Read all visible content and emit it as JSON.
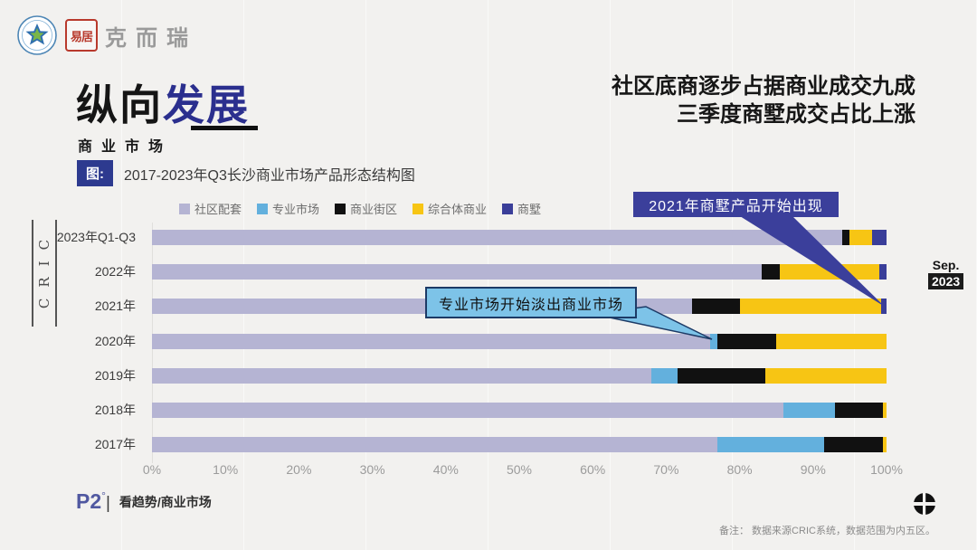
{
  "header": {
    "brand": "克而瑞",
    "seal_text": "易居",
    "title_black": "纵向",
    "title_blue": "发展",
    "subtitle": "商业市场",
    "headline_line1": "社区底商逐步占据商业成交九成",
    "headline_line2": "三季度商墅成交占比上涨"
  },
  "figure": {
    "tag_label": "图:",
    "caption": "2017-2023年Q3长沙商业市场产品形态结构图"
  },
  "chart_data": {
    "type": "bar",
    "orientation": "horizontal",
    "stacked": true,
    "unit": "%",
    "title": "2017-2023年Q3长沙商业市场产品形态结构图",
    "categories": [
      "2023年Q1-Q3",
      "2022年",
      "2021年",
      "2020年",
      "2019年",
      "2018年",
      "2017年"
    ],
    "series": [
      {
        "name": "社区配套",
        "color": "#b5b4d3",
        "values": [
          94,
          83,
          73.5,
          76,
          68,
          86,
          77
        ]
      },
      {
        "name": "专业市场",
        "color": "#63b0dd",
        "values": [
          0,
          0,
          0,
          1,
          3.5,
          7,
          14.5
        ]
      },
      {
        "name": "商业街区",
        "color": "#111111",
        "values": [
          1,
          2.5,
          6.5,
          8,
          12,
          6.5,
          8
        ]
      },
      {
        "name": "综合体商业",
        "color": "#f7c514",
        "values": [
          3,
          13.5,
          19.3,
          15,
          16.5,
          0.5,
          0.5
        ]
      },
      {
        "name": "商墅",
        "color": "#3a3e99",
        "values": [
          2,
          1,
          0.7,
          0,
          0,
          0,
          0
        ]
      }
    ],
    "x_ticks": [
      "0%",
      "10%",
      "20%",
      "30%",
      "40%",
      "50%",
      "60%",
      "70%",
      "80%",
      "90%",
      "100%"
    ],
    "xlim": [
      0,
      100
    ],
    "legend_position": "top",
    "grid": false
  },
  "annotations": {
    "navy_callout": "2021年商墅产品开始出现",
    "blue_callout": "专业市场开始淡出商业市场"
  },
  "badge": {
    "month": "Sep.",
    "year": "2023"
  },
  "side_label": "CRIC",
  "footer": {
    "page": "P2",
    "degree": "°",
    "bar": "|",
    "section": "看趋势/商业市场",
    "note": "备注： 数据来源CRIC系统，数据范围为内五区。"
  }
}
